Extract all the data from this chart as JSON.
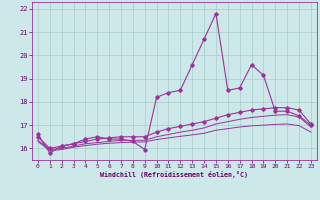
{
  "xlabel": "Windchill (Refroidissement éolien,°C)",
  "background_color": "#cce8e8",
  "line_color": "#993399",
  "grid_color": "#aacccc",
  "ylim": [
    15.5,
    22.3
  ],
  "xlim": [
    -0.5,
    23.5
  ],
  "yticks": [
    16,
    17,
    18,
    19,
    20,
    21,
    22
  ],
  "xticks": [
    0,
    1,
    2,
    3,
    4,
    5,
    6,
    7,
    8,
    9,
    10,
    11,
    12,
    13,
    14,
    15,
    16,
    17,
    18,
    19,
    20,
    21,
    22,
    23
  ],
  "main_x": [
    0,
    1,
    2,
    3,
    4,
    5,
    6,
    7,
    8,
    9,
    10,
    11,
    12,
    13,
    14,
    15,
    16,
    17,
    18,
    19,
    20,
    21,
    22,
    23
  ],
  "main_y": [
    16.6,
    15.8,
    16.1,
    16.2,
    16.4,
    16.5,
    16.4,
    16.4,
    16.3,
    15.95,
    18.2,
    18.4,
    18.5,
    19.6,
    20.7,
    21.8,
    18.5,
    18.6,
    19.6,
    19.15,
    17.6,
    17.6,
    17.4,
    17.0
  ],
  "line2_x": [
    0,
    1,
    2,
    3,
    4,
    5,
    6,
    7,
    8,
    9,
    10,
    11,
    12,
    13,
    14,
    15,
    16,
    17,
    18,
    19,
    20,
    21,
    22,
    23
  ],
  "line2_y": [
    16.5,
    16.0,
    16.1,
    16.2,
    16.3,
    16.4,
    16.45,
    16.5,
    16.5,
    16.5,
    16.7,
    16.85,
    16.95,
    17.05,
    17.15,
    17.3,
    17.45,
    17.55,
    17.65,
    17.7,
    17.75,
    17.75,
    17.65,
    17.05
  ],
  "line3_x": [
    0,
    1,
    2,
    3,
    4,
    5,
    6,
    7,
    8,
    9,
    10,
    11,
    12,
    13,
    14,
    15,
    16,
    17,
    18,
    19,
    20,
    21,
    22,
    23
  ],
  "line3_y": [
    16.35,
    15.95,
    16.0,
    16.1,
    16.2,
    16.25,
    16.3,
    16.35,
    16.35,
    16.35,
    16.5,
    16.6,
    16.7,
    16.78,
    16.88,
    17.05,
    17.15,
    17.25,
    17.33,
    17.38,
    17.43,
    17.45,
    17.35,
    16.92
  ],
  "line4_x": [
    0,
    1,
    2,
    3,
    4,
    5,
    6,
    7,
    8,
    9,
    10,
    11,
    12,
    13,
    14,
    15,
    16,
    17,
    18,
    19,
    20,
    21,
    22,
    23
  ],
  "line4_y": [
    16.3,
    15.9,
    15.95,
    16.05,
    16.12,
    16.18,
    16.22,
    16.25,
    16.27,
    16.28,
    16.38,
    16.45,
    16.52,
    16.58,
    16.65,
    16.78,
    16.85,
    16.92,
    16.97,
    17.0,
    17.03,
    17.05,
    16.98,
    16.7
  ]
}
